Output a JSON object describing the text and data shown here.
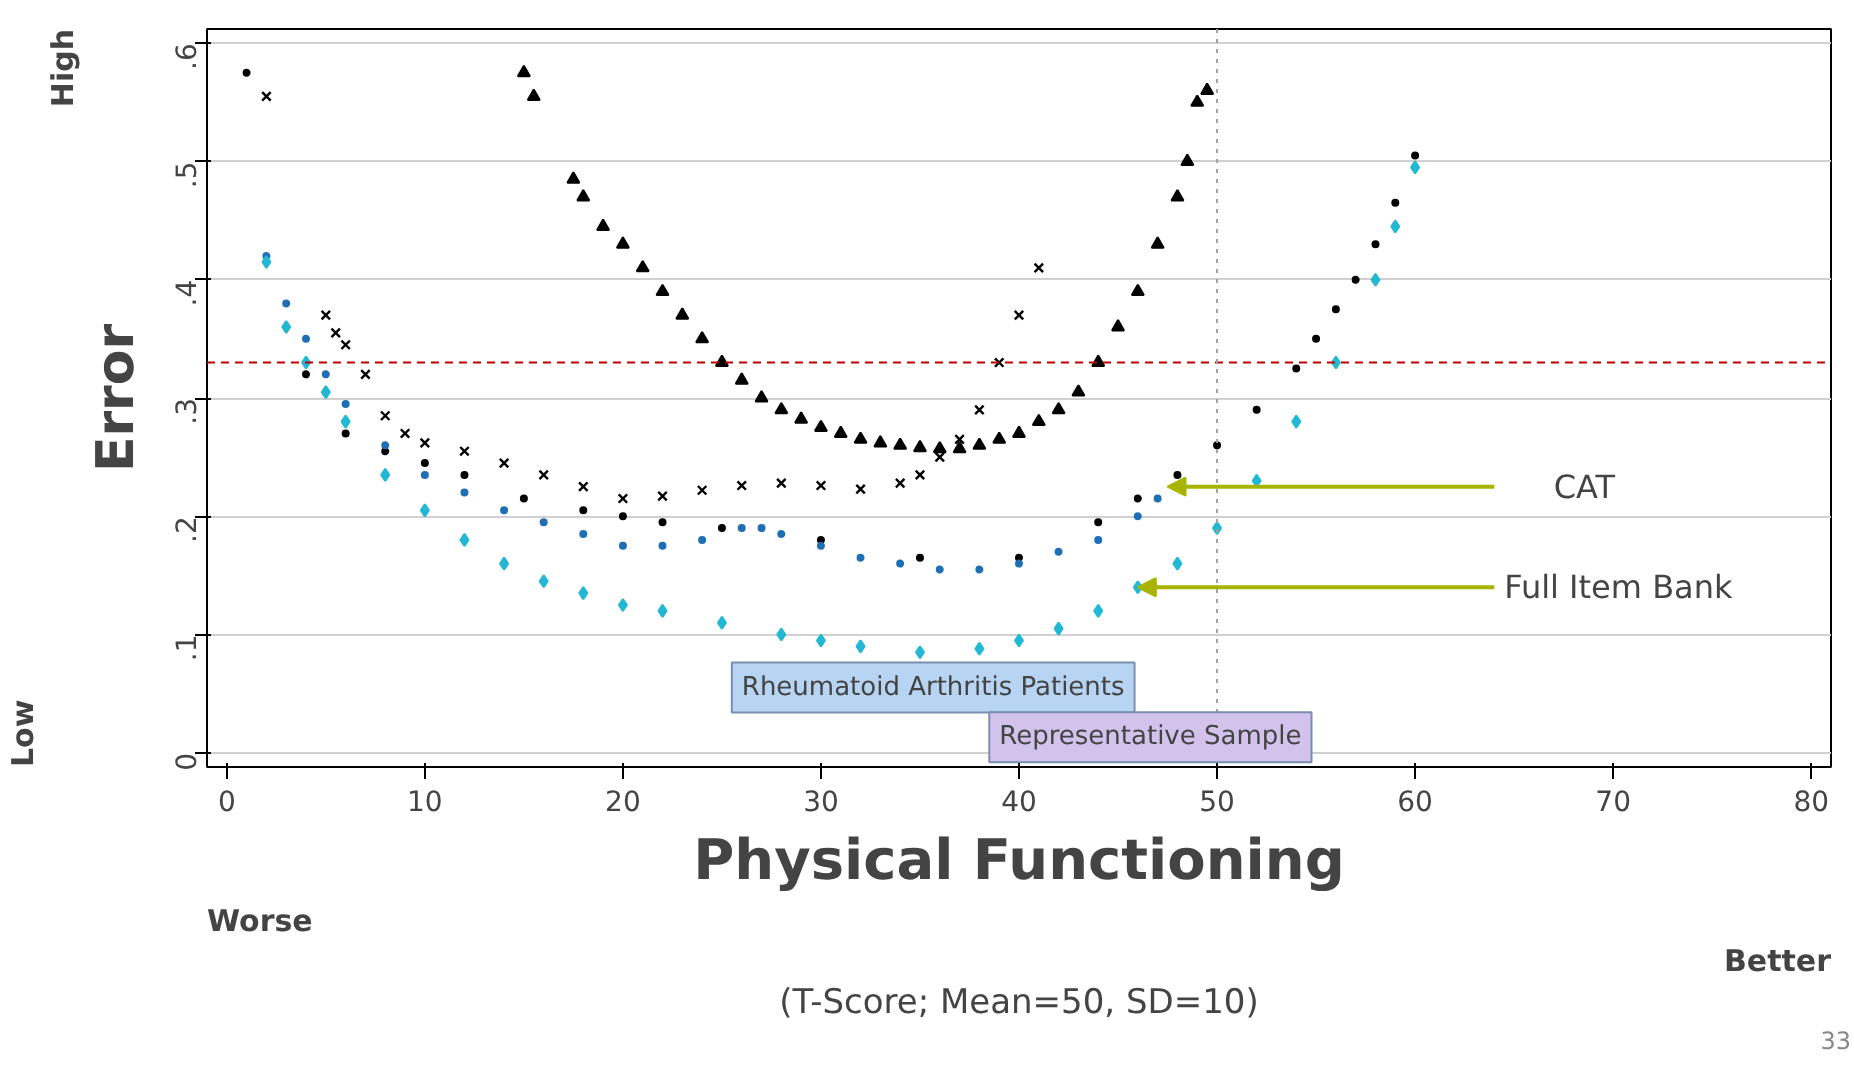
{
  "chart_data": {
    "type": "scatter",
    "ylabel": "Error",
    "xlabel": "Physical Functioning",
    "xlim": [
      -1,
      81
    ],
    "ylim": [
      -0.012,
      0.612
    ],
    "xticks": [
      0,
      10,
      20,
      30,
      40,
      50,
      60,
      70,
      80
    ],
    "yticks": [
      {
        "value": 0,
        "label": "0"
      },
      {
        "value": 0.1,
        "label": ".1"
      },
      {
        "value": 0.2,
        "label": ".2"
      },
      {
        "value": 0.3,
        "label": ".3"
      },
      {
        "value": 0.4,
        "label": ".4"
      },
      {
        "value": 0.5,
        "label": ".5"
      },
      {
        "value": 0.6,
        "label": ".6"
      }
    ],
    "grid": "y",
    "series": [
      {
        "color": "#000000",
        "marker": "triangle",
        "x": [
          15,
          15.5,
          17.5,
          18,
          19,
          20,
          21,
          22,
          23,
          24,
          25,
          26,
          27,
          28,
          29,
          30,
          31,
          32,
          33,
          34,
          35,
          36,
          37,
          38,
          39,
          40,
          41,
          42,
          43,
          44,
          45,
          46,
          47,
          48,
          48.5,
          49,
          49.5
        ],
        "values": [
          0.575,
          0.555,
          0.485,
          0.47,
          0.445,
          0.43,
          0.41,
          0.39,
          0.37,
          0.35,
          0.33,
          0.315,
          0.3,
          0.29,
          0.282,
          0.275,
          0.27,
          0.265,
          0.262,
          0.26,
          0.258,
          0.257,
          0.257,
          0.26,
          0.265,
          0.27,
          0.28,
          0.29,
          0.305,
          0.33,
          0.36,
          0.39,
          0.43,
          0.47,
          0.5,
          0.55,
          0.56
        ]
      },
      {
        "color": "#000000",
        "marker": "cross",
        "x": [
          2,
          5,
          5.5,
          6,
          7,
          8,
          9,
          10,
          12,
          14,
          16,
          18,
          20,
          22,
          24,
          26,
          28,
          30,
          32,
          34,
          35,
          36,
          37,
          38,
          39,
          40,
          41
        ],
        "values": [
          0.555,
          0.37,
          0.355,
          0.345,
          0.32,
          0.285,
          0.27,
          0.262,
          0.255,
          0.245,
          0.235,
          0.225,
          0.215,
          0.217,
          0.222,
          0.226,
          0.228,
          0.226,
          0.223,
          0.228,
          0.235,
          0.25,
          0.265,
          0.29,
          0.33,
          0.37,
          0.41
        ]
      },
      {
        "color": "#000000",
        "marker": "circle",
        "x": [
          1,
          4,
          6,
          8,
          10,
          12,
          15,
          18,
          20,
          22,
          25,
          30,
          35,
          40,
          44,
          46,
          48,
          50,
          52,
          54,
          55,
          56,
          57,
          58,
          59,
          60
        ],
        "values": [
          0.575,
          0.32,
          0.27,
          0.255,
          0.245,
          0.235,
          0.215,
          0.205,
          0.2,
          0.195,
          0.19,
          0.18,
          0.165,
          0.165,
          0.195,
          0.215,
          0.235,
          0.26,
          0.29,
          0.325,
          0.35,
          0.375,
          0.4,
          0.43,
          0.465,
          0.505
        ]
      },
      {
        "color": "#1f6fb5",
        "marker": "circle",
        "x": [
          2,
          3,
          4,
          5,
          6,
          8,
          10,
          12,
          14,
          16,
          18,
          20,
          22,
          24,
          26,
          27,
          28,
          30,
          32,
          34,
          36,
          38,
          40,
          42,
          44,
          46,
          47
        ],
        "values": [
          0.42,
          0.38,
          0.35,
          0.32,
          0.295,
          0.26,
          0.235,
          0.22,
          0.205,
          0.195,
          0.185,
          0.175,
          0.175,
          0.18,
          0.19,
          0.19,
          0.185,
          0.175,
          0.165,
          0.16,
          0.155,
          0.155,
          0.16,
          0.17,
          0.18,
          0.2,
          0.215
        ]
      },
      {
        "color": "#22b8d4",
        "marker": "diamond",
        "x": [
          2,
          3,
          4,
          5,
          6,
          8,
          10,
          12,
          14,
          16,
          18,
          20,
          22,
          25,
          28,
          30,
          32,
          35,
          38,
          40,
          42,
          44,
          46,
          48,
          50,
          52,
          54,
          56,
          58,
          59,
          60
        ],
        "values": [
          0.415,
          0.36,
          0.33,
          0.305,
          0.28,
          0.235,
          0.205,
          0.18,
          0.16,
          0.145,
          0.135,
          0.125,
          0.12,
          0.11,
          0.1,
          0.095,
          0.09,
          0.085,
          0.088,
          0.095,
          0.105,
          0.12,
          0.14,
          0.16,
          0.19,
          0.23,
          0.28,
          0.33,
          0.4,
          0.445,
          0.495
        ]
      }
    ],
    "ref_lines": [
      {
        "axis": "y",
        "value": 0.33,
        "color": "#c00000",
        "line_style": "dashed"
      },
      {
        "axis": "x",
        "value": 50,
        "color": "#a0a0a0",
        "line_style": "dotted"
      }
    ],
    "annotations": [
      "CAT",
      {
        "text": "Full Item Bank",
        "x": 46,
        "y": 0.14
      },
      "Rheumatoid Arthritis Patients",
      "Representative Sample",
      "High",
      "Low",
      "Worse",
      "Better",
      "(T-Score; Mean=50, SD=10)",
      "33"
    ]
  }
}
